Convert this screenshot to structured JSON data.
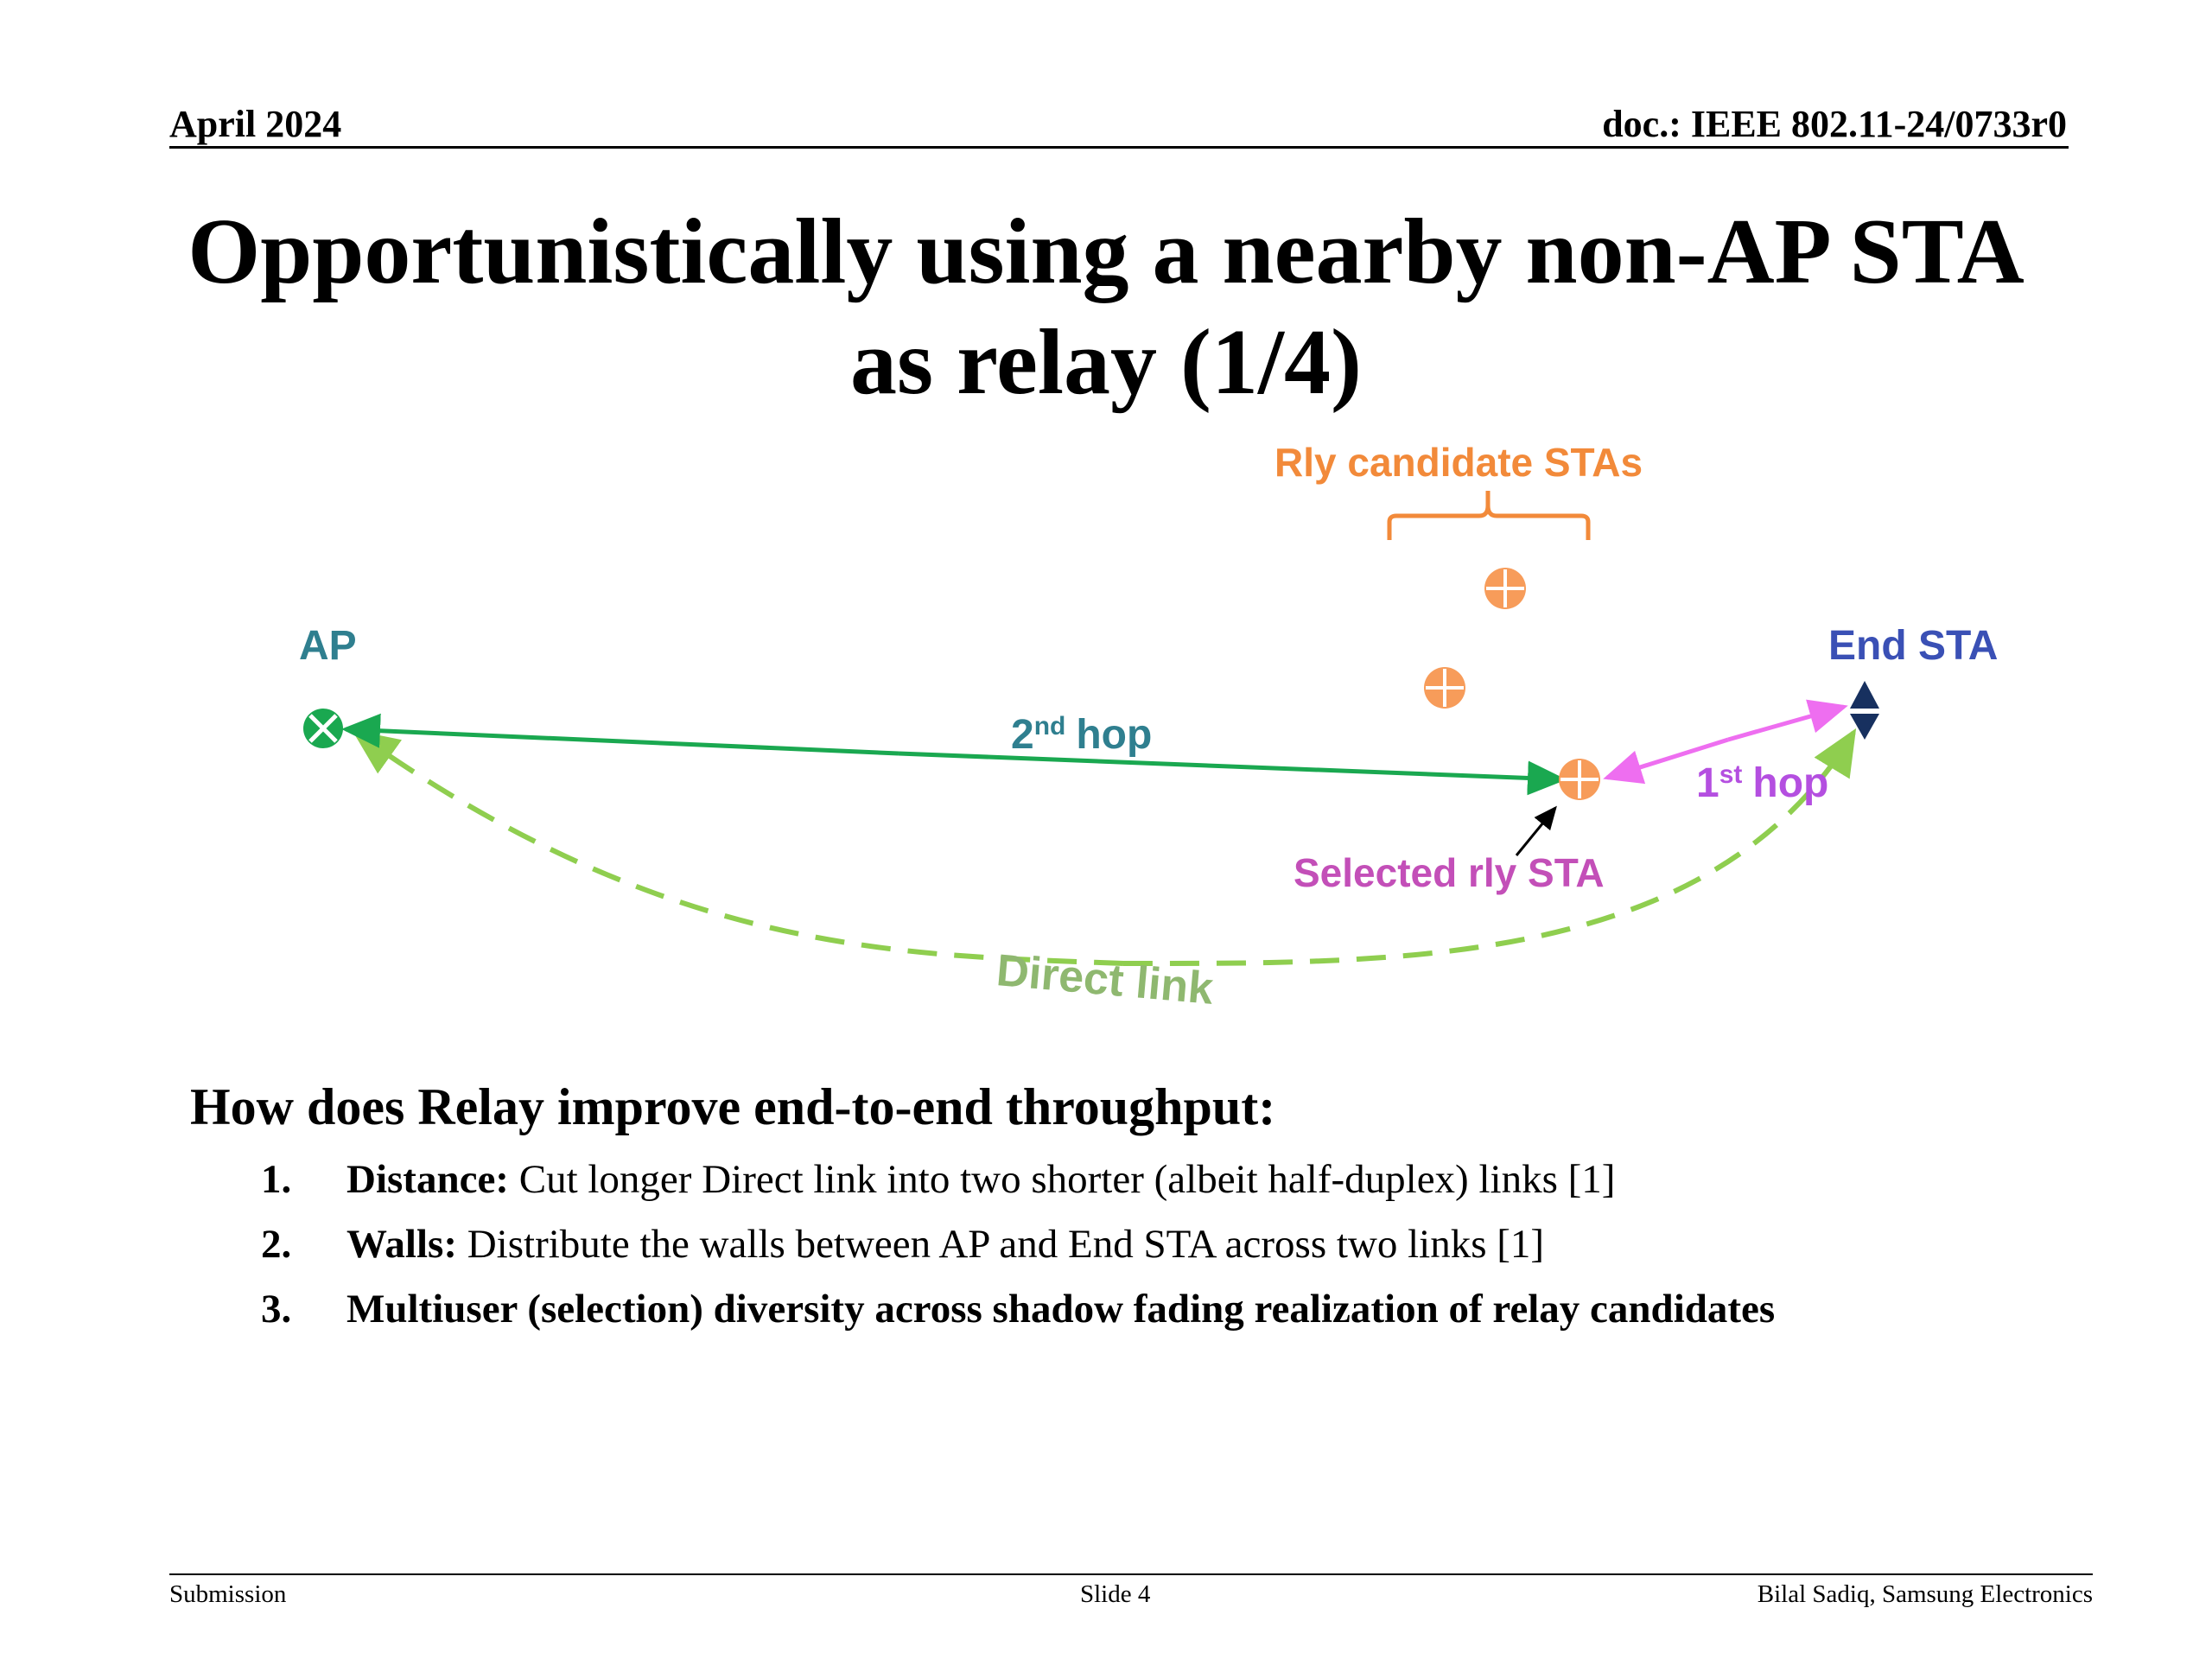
{
  "header": {
    "date": "April 2024",
    "doc": "doc.: IEEE 802.11-24/0733r0"
  },
  "title": {
    "line1": "Opportunistically using a nearby non-AP STA",
    "line2": "as relay (1/4)"
  },
  "diagram": {
    "ap_label": "AP",
    "end_sta_label": "End STA",
    "candidates_label": "Rly candidate STAs",
    "selected_label": "Selected rly STA",
    "hop2": {
      "num": "2",
      "sup": "nd",
      "word": "hop"
    },
    "hop1": {
      "num": "1",
      "sup": "st",
      "word": "hop"
    },
    "direct_label": "Direct link",
    "colors": {
      "ap": "#1aa850",
      "hop2": "#1aa850",
      "direct": "#8fce4f",
      "relay": "#f79c5a",
      "hop1": "#ee6ef0",
      "end_sta": "#17305f",
      "label_ap": "#2f7f8f",
      "label_end": "#3a50b5",
      "label_candidates": "#f28a3a",
      "label_selected": "#c34fb8",
      "label_hop1": "#b44fe0"
    }
  },
  "body": {
    "heading": "How does Relay improve end-to-end throughput:",
    "items": [
      {
        "num": "1.",
        "bold": "Distance:",
        "text": " Cut longer Direct link into two shorter (albeit half-duplex) links [1]"
      },
      {
        "num": "2.",
        "bold": "Walls:",
        "text": " Distribute the walls between AP and End STA across two links [1]"
      },
      {
        "num": "3.",
        "bold": "Multiuser (selection) diversity across shadow fading realization of relay candidates",
        "text": ""
      }
    ]
  },
  "footer": {
    "left": "Submission",
    "center": "Slide 4",
    "right": "Bilal Sadiq, Samsung Electronics"
  }
}
